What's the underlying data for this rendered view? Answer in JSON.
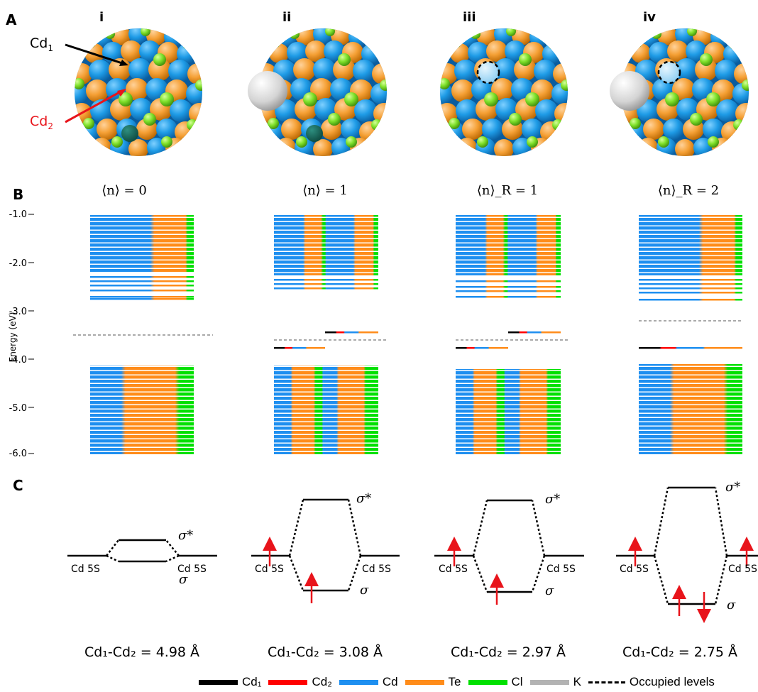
{
  "panels": {
    "a": "A",
    "b": "B",
    "c": "C"
  },
  "structures": [
    {
      "roman": "i",
      "cd1_label": "Cd",
      "cd1_sub": "1",
      "cd2_label": "Cd",
      "cd2_sub": "2"
    },
    {
      "roman": "ii"
    },
    {
      "roman": "iii"
    },
    {
      "roman": "iv"
    }
  ],
  "states": [
    "⟨n⟩ = 0",
    "⟨n⟩ = 1",
    "⟨n⟩_R = 1",
    "⟨n⟩_R = 2"
  ],
  "energy_axis": {
    "label": "Energy (eV)",
    "ticks": [
      "-1.0",
      "-2.0",
      "-3.0",
      "-4.0",
      "-5.0",
      "-6.0"
    ]
  },
  "mo_labels": {
    "cd5s": "Cd 5S",
    "sigma": "σ",
    "sigma_star": "σ*"
  },
  "bond_lengths": [
    "Cd₁-Cd₂ = 4.98 Å",
    "Cd₁-Cd₂ = 3.08 Å",
    "Cd₁-Cd₂ = 2.97 Å",
    "Cd₁-Cd₂ = 2.75 Å"
  ],
  "legend": [
    {
      "label": "Cd₁",
      "color": "#000000"
    },
    {
      "label": "Cd₂",
      "color": "#ff0000"
    },
    {
      "label": "Cd",
      "color": "#1e8ff0"
    },
    {
      "label": "Te",
      "color": "#ff8c1a"
    },
    {
      "label": "Cl",
      "color": "#00e000"
    },
    {
      "label": "K",
      "color": "#b3b3b3"
    }
  ],
  "legend_occupied": "Occupied levels",
  "colors": {
    "cd": "#1e8ff0",
    "te": "#ff8c1a",
    "cl": "#00e000",
    "cd1": "#000000",
    "cd2": "#ff0000",
    "k": "#b3b3b3",
    "arrow": "#e8141b"
  }
}
